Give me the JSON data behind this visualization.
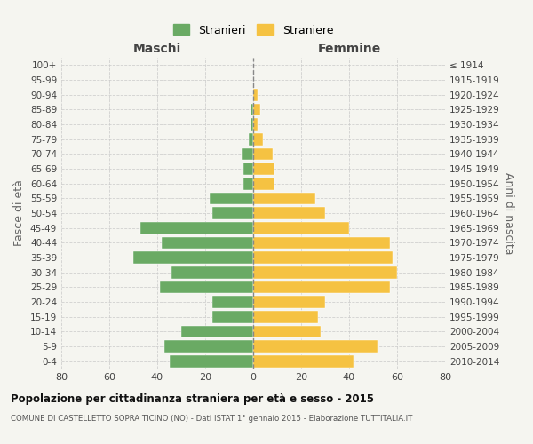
{
  "age_groups": [
    "0-4",
    "5-9",
    "10-14",
    "15-19",
    "20-24",
    "25-29",
    "30-34",
    "35-39",
    "40-44",
    "45-49",
    "50-54",
    "55-59",
    "60-64",
    "65-69",
    "70-74",
    "75-79",
    "80-84",
    "85-89",
    "90-94",
    "95-99",
    "100+"
  ],
  "birth_years": [
    "2010-2014",
    "2005-2009",
    "2000-2004",
    "1995-1999",
    "1990-1994",
    "1985-1989",
    "1980-1984",
    "1975-1979",
    "1970-1974",
    "1965-1969",
    "1960-1964",
    "1955-1959",
    "1950-1954",
    "1945-1949",
    "1940-1944",
    "1935-1939",
    "1930-1934",
    "1925-1929",
    "1920-1924",
    "1915-1919",
    "≤ 1914"
  ],
  "males": [
    35,
    37,
    30,
    17,
    17,
    39,
    34,
    50,
    38,
    47,
    17,
    18,
    4,
    4,
    5,
    2,
    1,
    1,
    0,
    0,
    0
  ],
  "females": [
    42,
    52,
    28,
    27,
    30,
    57,
    60,
    58,
    57,
    40,
    30,
    26,
    9,
    9,
    8,
    4,
    2,
    3,
    2,
    0,
    0
  ],
  "male_color": "#6aaa64",
  "female_color": "#f5c242",
  "background_color": "#f5f5f0",
  "grid_color": "#cccccc",
  "title": "Popolazione per cittadinanza straniera per età e sesso - 2015",
  "subtitle": "COMUNE DI CASTELLETTO SOPRA TICINO (NO) - Dati ISTAT 1° gennaio 2015 - Elaborazione TUTTITALIA.IT",
  "xlabel_left": "Maschi",
  "xlabel_right": "Femmine",
  "ylabel_left": "Fasce di età",
  "ylabel_right": "Anni di nascita",
  "legend_male": "Stranieri",
  "legend_female": "Straniere",
  "xlim": 80
}
